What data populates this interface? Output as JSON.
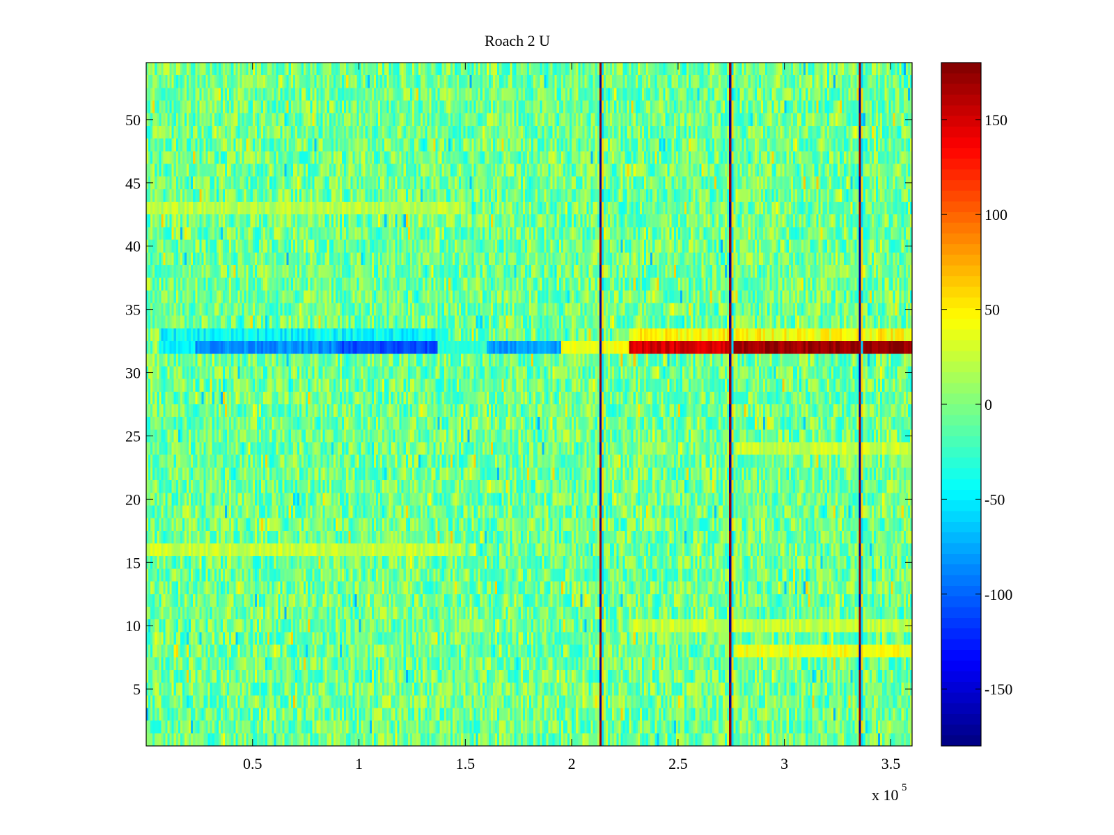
{
  "chart_data": {
    "type": "heatmap",
    "title": "Roach 2 U",
    "xlabel": "",
    "ylabel": "",
    "x_exponent_label": "x 10",
    "x_exponent_power": "5",
    "xlim": [
      0,
      3.6
    ],
    "ylim": [
      0.5,
      54.5
    ],
    "n_rows": 54,
    "n_cols": 360,
    "x_ticks": [
      0.5,
      1,
      1.5,
      2,
      2.5,
      3,
      3.5
    ],
    "x_tick_labels": [
      "0.5",
      "1",
      "1.5",
      "2",
      "2.5",
      "3",
      "3.5"
    ],
    "y_ticks": [
      5,
      10,
      15,
      20,
      25,
      30,
      35,
      40,
      45,
      50
    ],
    "y_tick_labels": [
      "5",
      "10",
      "15",
      "20",
      "25",
      "30",
      "35",
      "40",
      "45",
      "50"
    ],
    "colorbar": {
      "colormap": "jet",
      "clim": [
        -180,
        180
      ],
      "ticks": [
        -150,
        -100,
        -50,
        0,
        50,
        100,
        150
      ],
      "tick_labels": [
        "-150",
        "-100",
        "-50",
        "0",
        "50",
        "100",
        "150"
      ]
    },
    "baseline_value_range": [
      -40,
      30
    ],
    "vertical_artifact_columns_x": [
      2.13,
      2.74,
      3.35
    ],
    "highlight_row": {
      "row": 32,
      "segments": [
        {
          "x_start": 0.06,
          "x_end": 0.23,
          "value": -45
        },
        {
          "x_start": 0.23,
          "x_end": 0.9,
          "value": -85
        },
        {
          "x_start": 0.9,
          "x_end": 1.37,
          "value": -110
        },
        {
          "x_start": 1.37,
          "x_end": 1.6,
          "value": -30
        },
        {
          "x_start": 1.6,
          "x_end": 1.95,
          "value": -80
        },
        {
          "x_start": 1.95,
          "x_end": 2.27,
          "value": 40
        },
        {
          "x_start": 2.27,
          "x_end": 2.74,
          "value": 150
        },
        {
          "x_start": 2.74,
          "x_end": 3.6,
          "value": 170
        }
      ]
    },
    "neighbor_row_33_segments": [
      {
        "x_start": 0.06,
        "x_end": 1.4,
        "value": -45
      },
      {
        "x_start": 2.27,
        "x_end": 3.6,
        "value": 45
      }
    ],
    "warm_band_rows": [
      {
        "row": 8,
        "x_start": 2.76,
        "x_end": 3.6,
        "value": 40
      },
      {
        "row": 10,
        "x_start": 2.27,
        "x_end": 3.6,
        "value": 25
      },
      {
        "row": 24,
        "x_start": 2.76,
        "x_end": 3.6,
        "value": 25
      },
      {
        "row": 16,
        "x_start": 0.0,
        "x_end": 1.5,
        "value": 25
      },
      {
        "row": 43,
        "x_start": 0.0,
        "x_end": 1.5,
        "value": 20
      }
    ]
  }
}
